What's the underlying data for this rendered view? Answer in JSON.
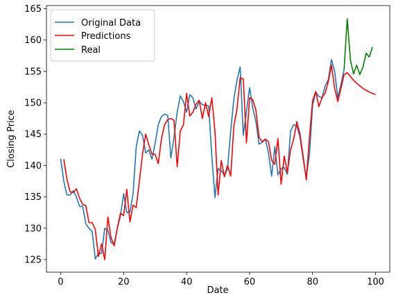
{
  "chart_data": {
    "type": "line",
    "xlabel": "Date",
    "ylabel": "Closing Price",
    "xlim": [
      -4.5,
      104.5
    ],
    "ylim": [
      123.0,
      165.5
    ],
    "xticks": [
      0,
      20,
      40,
      60,
      80,
      100
    ],
    "yticks": [
      125,
      130,
      135,
      140,
      145,
      150,
      155,
      160,
      165
    ],
    "grid": false,
    "legend_position": "upper-left",
    "series": [
      {
        "name": "Original Data",
        "color": "#1f77b4",
        "x": [
          0,
          1,
          2,
          3,
          4,
          5,
          6,
          7,
          8,
          9,
          10,
          11,
          12,
          13,
          14,
          15,
          16,
          17,
          18,
          19,
          20,
          21,
          22,
          23,
          24,
          25,
          26,
          27,
          28,
          29,
          30,
          31,
          32,
          33,
          34,
          35,
          36,
          37,
          38,
          39,
          40,
          41,
          42,
          43,
          44,
          45,
          46,
          47,
          48,
          49,
          50,
          51,
          52,
          53,
          54,
          55,
          56,
          57,
          58,
          59,
          60,
          61,
          62,
          63,
          64,
          65,
          66,
          67,
          68,
          69,
          70,
          71,
          72,
          73,
          74,
          75,
          76,
          77,
          78,
          79,
          80,
          81,
          82,
          83,
          84,
          85,
          86,
          87,
          88,
          89,
          90
        ],
        "y": [
          141.1,
          137.5,
          135.3,
          135.3,
          136.0,
          135.0,
          133.5,
          133.5,
          130.7,
          130.0,
          129.5,
          125.1,
          126.0,
          126.0,
          130.0,
          129.7,
          127.7,
          127.5,
          130.0,
          132.0,
          135.5,
          132.5,
          132.6,
          135.5,
          143.0,
          145.5,
          144.8,
          142.0,
          142.5,
          141.0,
          143.5,
          146.5,
          147.8,
          148.2,
          148.0,
          141.2,
          144.5,
          148.5,
          151.1,
          150.2,
          148.5,
          151.3,
          150.8,
          149.0,
          150.2,
          149.7,
          149.6,
          149.5,
          141.5,
          134.9,
          139.5,
          139.2,
          138.4,
          139.5,
          145.5,
          150.6,
          153.6,
          155.7,
          144.8,
          148.6,
          152.4,
          149.2,
          147.0,
          143.4,
          143.7,
          144.2,
          142.0,
          138.3,
          143.0,
          138.5,
          139.5,
          139.7,
          138.6,
          145.5,
          146.5,
          146.3,
          144.5,
          141.0,
          138.2,
          141.7,
          149.6,
          151.7,
          151.0,
          150.8,
          152.7,
          153.7,
          156.9,
          155.0,
          150.8,
          152.9,
          155.3
        ]
      },
      {
        "name": "Predictions",
        "color": "#ff0000",
        "x": [
          1,
          2,
          3,
          4,
          5,
          6,
          7,
          8,
          9,
          10,
          11,
          12,
          13,
          14,
          15,
          16,
          17,
          18,
          19,
          20,
          21,
          22,
          23,
          24,
          25,
          26,
          27,
          28,
          29,
          30,
          31,
          32,
          33,
          34,
          35,
          36,
          37,
          38,
          39,
          40,
          41,
          42,
          43,
          44,
          45,
          46,
          47,
          48,
          49,
          50,
          51,
          52,
          53,
          54,
          55,
          56,
          57,
          58,
          59,
          60,
          61,
          62,
          63,
          64,
          65,
          66,
          67,
          68,
          69,
          70,
          71,
          72,
          73,
          74,
          75,
          76,
          77,
          78,
          79,
          80,
          81,
          82,
          83,
          84,
          85,
          86,
          87,
          88,
          89,
          90,
          91,
          92,
          93,
          94,
          95,
          96,
          97,
          98,
          99,
          100
        ],
        "y": [
          141.0,
          137.8,
          135.8,
          135.7,
          136.3,
          134.8,
          133.8,
          133.6,
          130.9,
          130.9,
          129.8,
          125.5,
          127.5,
          125.0,
          131.8,
          128.5,
          127.2,
          130.0,
          132.4,
          132.0,
          136.2,
          131.0,
          133.7,
          133.3,
          137.5,
          141.8,
          145.0,
          143.3,
          141.8,
          141.8,
          140.3,
          144.2,
          146.5,
          147.3,
          147.5,
          147.2,
          139.8,
          145.5,
          146.5,
          151.5,
          147.9,
          148.5,
          149.8,
          150.4,
          147.5,
          150.0,
          147.8,
          150.8,
          145.5,
          135.3,
          140.8,
          138.2,
          140.0,
          138.3,
          146.3,
          149.0,
          154.0,
          153.8,
          143.6,
          150.8,
          150.5,
          148.8,
          144.5,
          143.8,
          144.2,
          143.8,
          140.8,
          140.2,
          144.3,
          137.0,
          141.5,
          138.9,
          142.5,
          144.2,
          147.0,
          145.0,
          141.5,
          137.7,
          144.5,
          150.3,
          151.8,
          149.4,
          150.8,
          151.6,
          153.4,
          156.0,
          152.3,
          150.2,
          152.3,
          154.5,
          154.8,
          154.2,
          153.6,
          153.1,
          152.7,
          152.3,
          152.0,
          151.7,
          151.5,
          151.3
        ]
      },
      {
        "name": "Real",
        "color": "#008000",
        "x": [
          90,
          91,
          92,
          93,
          94,
          95,
          96,
          97,
          98,
          99
        ],
        "y": [
          155.3,
          163.4,
          156.9,
          154.6,
          156.0,
          154.5,
          155.7,
          157.9,
          157.3,
          158.9
        ]
      }
    ]
  }
}
